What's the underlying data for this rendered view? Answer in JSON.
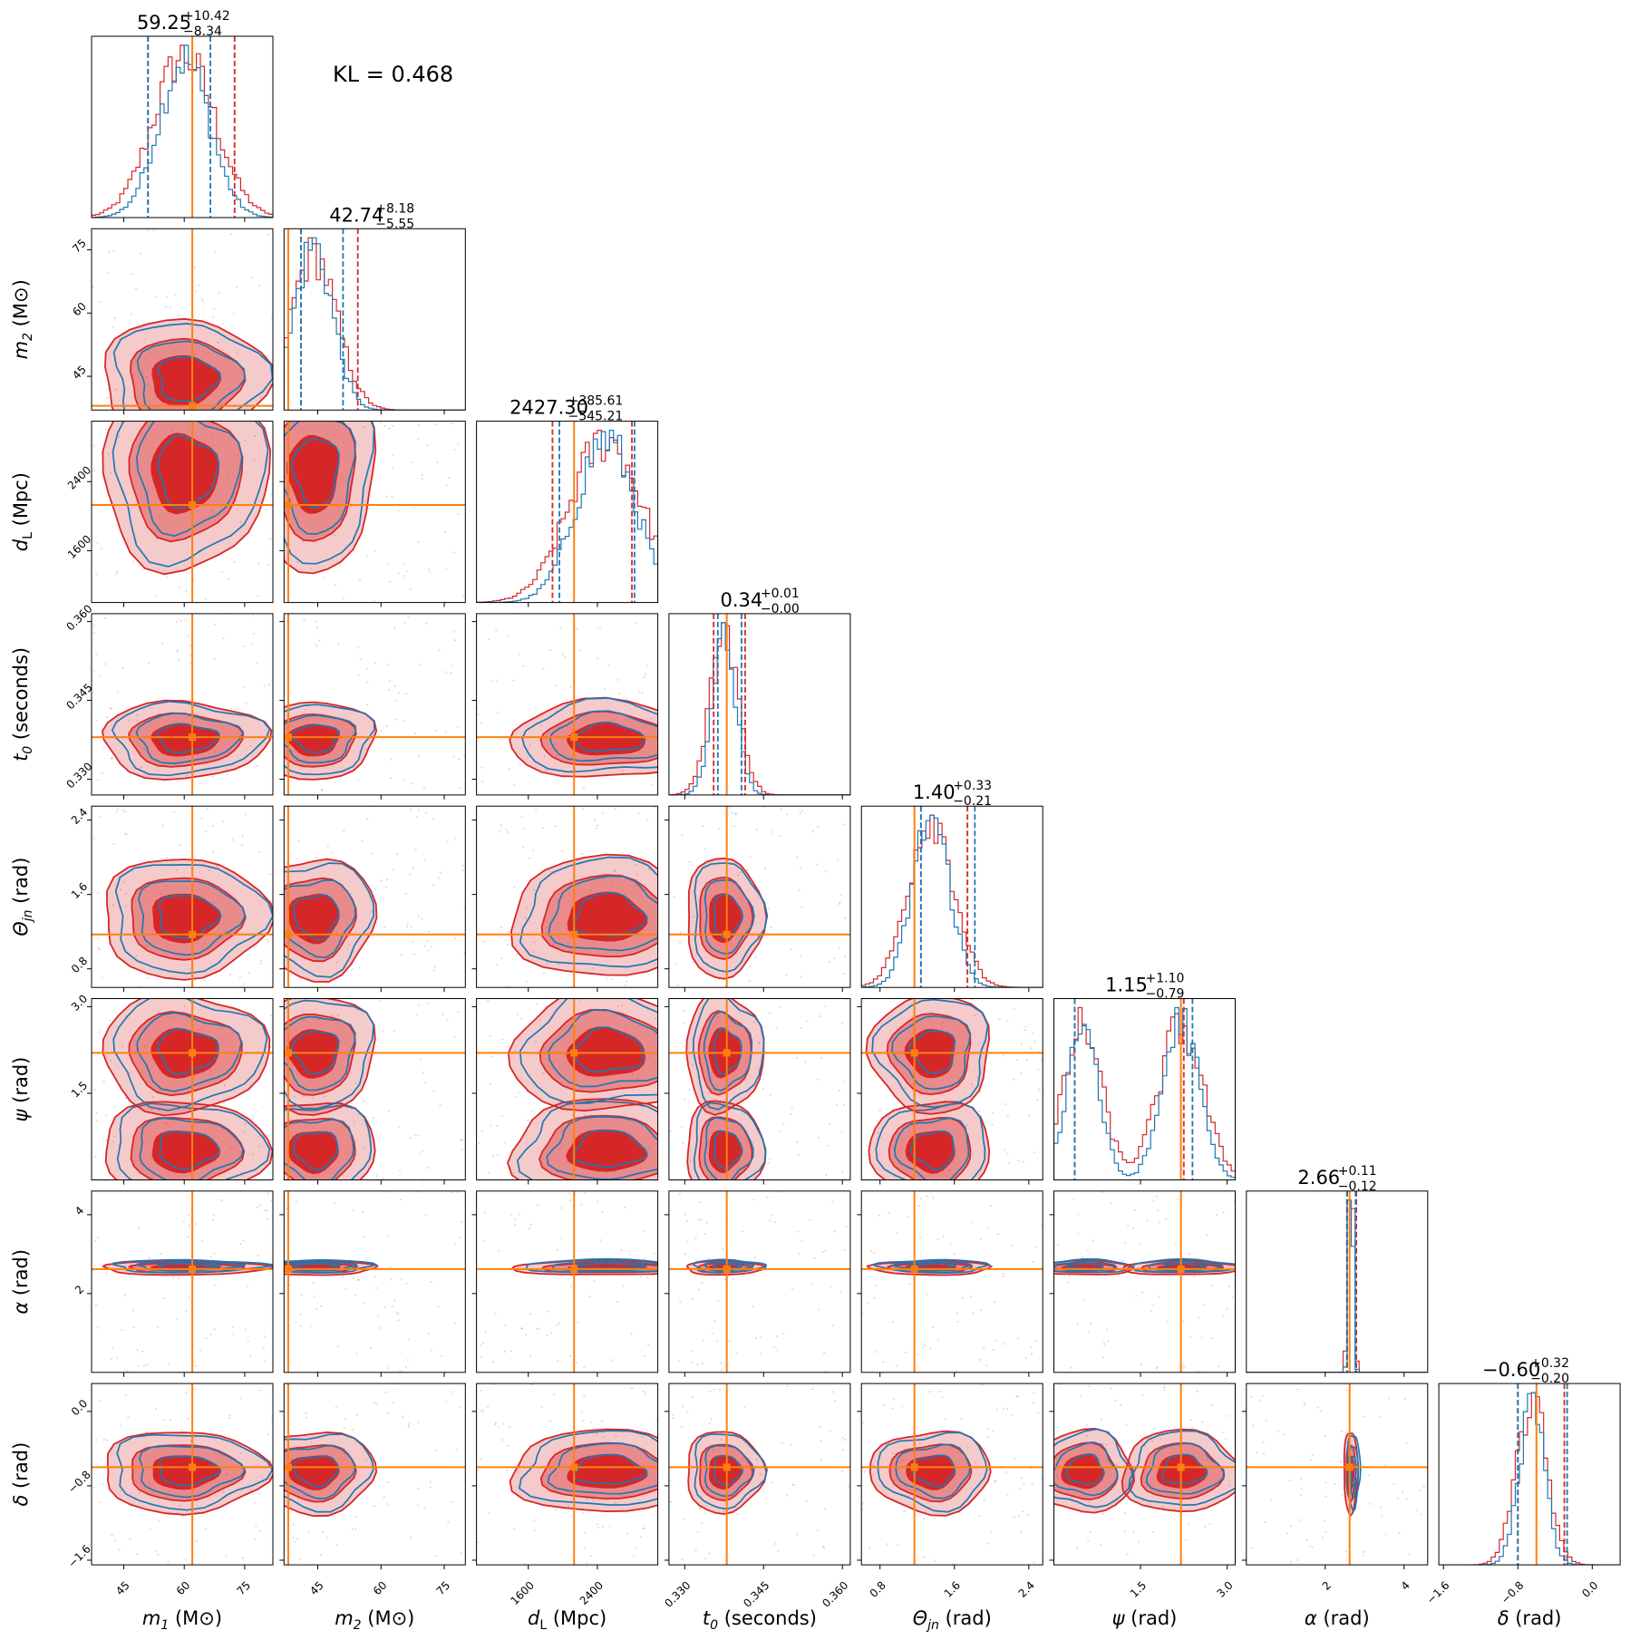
{
  "chart_data": {
    "type": "corner",
    "annotation": "KL = 0.468",
    "colors": {
      "blue": "#1f77b4",
      "red": "#d62728",
      "truth": "#ff7f0e"
    },
    "params": [
      {
        "key": "m1",
        "label": "m₁ (M⊙)",
        "sym": "m",
        "sub": "1",
        "unit": "(M⊙)",
        "range": [
          37,
          82
        ],
        "ticks": [
          45,
          60,
          75
        ],
        "tick_labels": [
          "45",
          "60",
          "75"
        ],
        "truth": 62,
        "median_label": "59.25",
        "err_plus": "+10.42",
        "err_minus": "−8.34",
        "q_red": [
          51,
          72.5
        ],
        "q_blue": [
          51,
          66.5
        ]
      },
      {
        "key": "m2",
        "label": "m₂ (M⊙)",
        "sym": "m",
        "sub": "2",
        "unit": "(M⊙)",
        "range": [
          37,
          80
        ],
        "ticks": [
          45,
          60,
          75
        ],
        "tick_labels": [
          "45",
          "60",
          "75"
        ],
        "truth": 38,
        "median_label": "42.74",
        "err_plus": "+8.18",
        "err_minus": "−5.55",
        "q_red": [
          41,
          54.5
        ],
        "q_blue": [
          41,
          51
        ]
      },
      {
        "key": "dL",
        "label": "d_L (Mpc)",
        "sym": "d",
        "sub": "L",
        "unit": "(Mpc)",
        "range": [
          1000,
          3100
        ],
        "ticks": [
          1600,
          2400
        ],
        "tick_labels": [
          "1600",
          "2400"
        ],
        "truth": 2130,
        "median_label": "2427.30",
        "err_plus": "+385.61",
        "err_minus": "−545.21",
        "q_red": [
          1880,
          2800
        ],
        "q_blue": [
          1960,
          2830
        ]
      },
      {
        "key": "t0",
        "label": "t₀ (seconds)",
        "sym": "t",
        "sub": "0",
        "unit": "(seconds)",
        "range": [
          0.327,
          0.3615
        ],
        "ticks": [
          0.33,
          0.345,
          0.36
        ],
        "tick_labels": [
          "0.330",
          "0.345",
          "0.360"
        ],
        "truth": 0.338,
        "median_label": "0.34",
        "err_plus": "+0.01",
        "err_minus": "−0.00",
        "q_red": [
          0.3355,
          0.3415
        ],
        "q_blue": [
          0.3363,
          0.3408
        ]
      },
      {
        "key": "theta",
        "label": "Θjn (rad)",
        "sym": "Θ",
        "sub": "jn",
        "unit": "(rad)",
        "range": [
          0.6,
          2.55
        ],
        "ticks": [
          0.8,
          1.6,
          2.4
        ],
        "tick_labels": [
          "0.8",
          "1.6",
          "2.4"
        ],
        "truth": 1.17,
        "median_label": "1.40",
        "err_plus": "+0.33",
        "err_minus": "−0.21",
        "q_red": [
          1.24,
          1.74
        ],
        "q_blue": [
          1.24,
          1.82
        ]
      },
      {
        "key": "psi",
        "label": "ψ (rad)",
        "sym": "ψ",
        "sub": "",
        "unit": "(rad)",
        "range": [
          0.0,
          3.14
        ],
        "ticks": [
          1.5,
          3.0
        ],
        "tick_labels": [
          "1.5",
          "3.0"
        ],
        "truth": 2.2,
        "median_label": "1.15",
        "err_plus": "+1.10",
        "err_minus": "−0.79",
        "q_red": [
          0.36,
          2.25
        ],
        "q_blue": [
          0.36,
          2.4
        ]
      },
      {
        "key": "alpha",
        "label": "α (rad)",
        "sym": "α",
        "sub": "",
        "unit": "(rad)",
        "range": [
          0.0,
          4.6
        ],
        "ticks": [
          2,
          4
        ],
        "tick_labels": [
          "2",
          "4"
        ],
        "truth": 2.62,
        "median_label": "2.66",
        "err_plus": "+0.11",
        "err_minus": "−0.12",
        "q_red": [
          2.56,
          2.79
        ],
        "q_blue": [
          2.55,
          2.77
        ]
      },
      {
        "key": "delta",
        "label": "δ (rad)",
        "sym": "δ",
        "sub": "",
        "unit": "(rad)",
        "range": [
          -1.65,
          0.3
        ],
        "ticks": [
          -1.6,
          -0.8,
          0.0
        ],
        "tick_labels": [
          "−1.6",
          "−0.8",
          "0.0"
        ],
        "truth": -0.6,
        "median_label": "−0.60",
        "err_plus": "+0.32",
        "err_minus": "−0.20",
        "q_red": [
          -0.8,
          -0.3
        ],
        "q_blue": [
          -0.8,
          -0.27
        ]
      }
    ]
  }
}
